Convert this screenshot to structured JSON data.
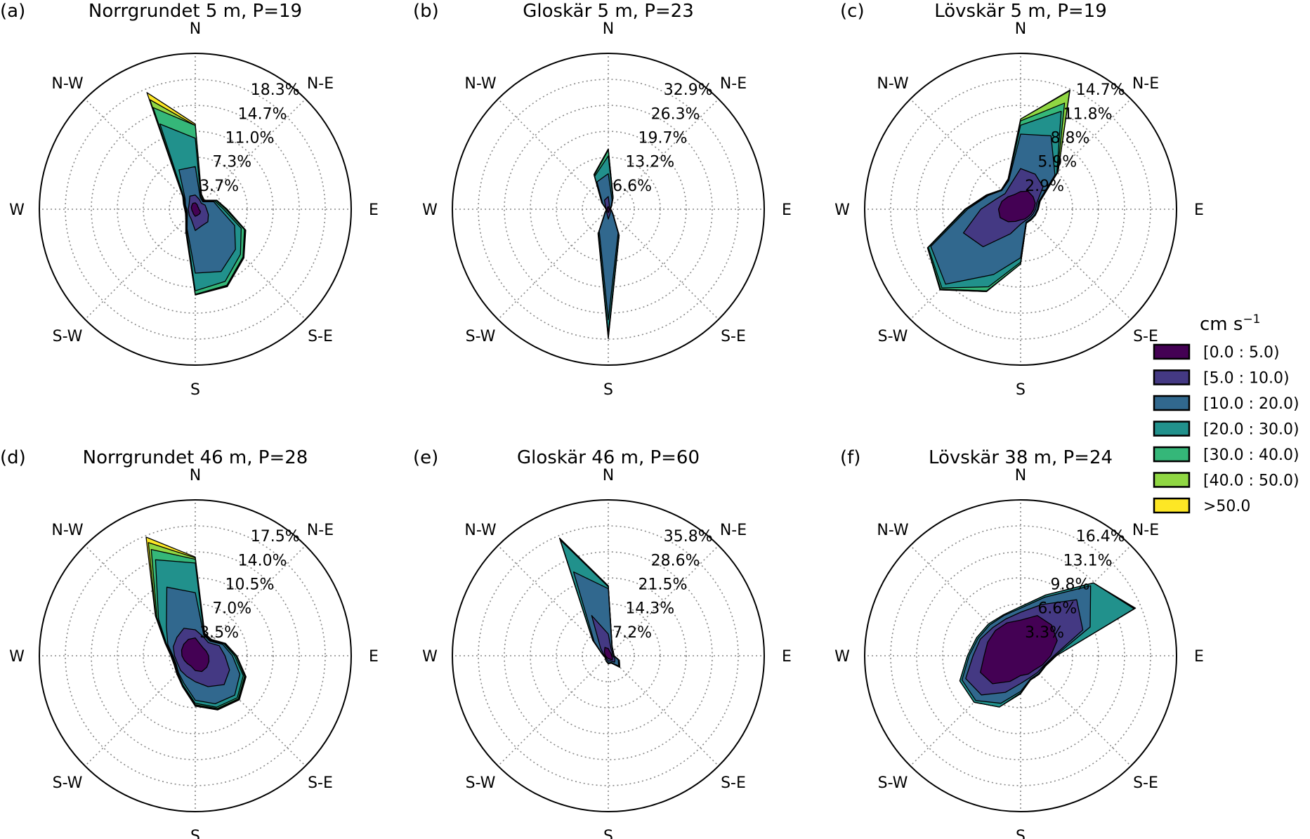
{
  "chart_data": {
    "type": "windrose",
    "direction_labels": [
      "N",
      "N-E",
      "E",
      "S-E",
      "S",
      "S-W",
      "W",
      "N-W"
    ],
    "legend": {
      "title": "cm s",
      "title_superscript": "−1",
      "bins": [
        {
          "label": "[0.0 : 5.0)",
          "color": "#440154"
        },
        {
          "label": "[5.0 : 10.0)",
          "color": "#443983"
        },
        {
          "label": "[10.0 : 20.0)",
          "color": "#31688e"
        },
        {
          "label": "[20.0 : 30.0)",
          "color": "#21918c"
        },
        {
          "label": "[30.0 : 40.0)",
          "color": "#35b779"
        },
        {
          "label": "[40.0 : 50.0)",
          "color": "#90d743"
        },
        {
          "label": ">50.0",
          "color": "#fde725"
        }
      ]
    },
    "directions_deg": [
      0,
      22.5,
      45,
      67.5,
      90,
      112.5,
      135,
      157.5,
      180,
      202.5,
      225,
      247.5,
      270,
      292.5,
      315,
      337.5
    ],
    "panels": [
      {
        "label": "(a)",
        "title": "Norrgrundet 5 m, P=19",
        "radial_ticks": [
          "3.7%",
          "7.3%",
          "11.0%",
          "14.7%",
          "18.3%"
        ],
        "r_max": 18.3,
        "cumulative": [
          [
            0.9,
            0.7,
            0.5,
            0.5,
            0.5,
            0.8,
            0.9,
            0.9,
            1.0,
            0.7,
            0.5,
            0.5,
            0.5,
            0.6,
            0.7,
            0.9
          ],
          [
            2.0,
            1.5,
            1.2,
            1.5,
            1.6,
            2.0,
            2.5,
            2.5,
            3.0,
            1.5,
            1.2,
            1.0,
            1.0,
            1.0,
            1.2,
            2.0
          ],
          [
            6.0,
            1.8,
            1.5,
            2.8,
            3.5,
            6.0,
            8.0,
            9.5,
            9.0,
            3.0,
            1.6,
            1.2,
            1.2,
            1.5,
            2.0,
            6.0
          ],
          [
            10.0,
            2.0,
            1.6,
            3.0,
            4.0,
            7.0,
            9.0,
            11.0,
            11.5,
            3.2,
            1.7,
            1.3,
            1.3,
            1.6,
            2.2,
            13.0
          ],
          [
            11.8,
            2.2,
            1.7,
            3.2,
            4.3,
            7.5,
            9.5,
            11.6,
            12.0,
            3.4,
            1.8,
            1.4,
            1.4,
            1.7,
            2.4,
            15.5
          ],
          [
            11.8,
            2.2,
            1.7,
            3.2,
            4.4,
            7.6,
            9.6,
            11.7,
            12.0,
            3.4,
            1.8,
            1.4,
            1.4,
            1.7,
            2.4,
            16.7
          ],
          [
            12.0,
            2.3,
            1.8,
            3.3,
            4.5,
            7.7,
            9.7,
            11.8,
            12.1,
            3.5,
            1.9,
            1.5,
            1.5,
            1.8,
            2.5,
            17.8
          ]
        ]
      },
      {
        "label": "(b)",
        "title": "Gloskär 5 m, P=23",
        "radial_ticks": [
          "6.6%",
          "13.2%",
          "19.7%",
          "26.3%",
          "32.9%"
        ],
        "r_max": 32.9,
        "cumulative": [
          [
            0.7,
            0.3,
            0.3,
            0.3,
            0.3,
            0.3,
            0.3,
            0.5,
            0.9,
            0.5,
            0.3,
            0.3,
            0.3,
            0.3,
            0.3,
            0.5
          ],
          [
            3.2,
            0.8,
            0.6,
            0.5,
            0.5,
            0.6,
            0.8,
            1.2,
            2.5,
            1.0,
            0.6,
            0.5,
            0.5,
            0.6,
            1.0,
            2.5
          ],
          [
            9.0,
            2.5,
            1.0,
            0.6,
            0.5,
            0.8,
            1.5,
            6.5,
            28.0,
            6.0,
            1.0,
            0.5,
            0.5,
            0.7,
            2.0,
            7.5
          ],
          [
            13.5,
            3.0,
            1.1,
            0.7,
            0.6,
            0.9,
            1.6,
            7.0,
            31.5,
            6.5,
            1.1,
            0.6,
            0.6,
            0.8,
            2.2,
            9.0
          ],
          [
            15.0,
            3.1,
            1.2,
            0.7,
            0.6,
            0.9,
            1.6,
            7.1,
            32.0,
            6.6,
            1.1,
            0.6,
            0.6,
            0.8,
            2.3,
            9.3
          ],
          [
            15.2,
            3.2,
            1.2,
            0.7,
            0.6,
            0.9,
            1.7,
            7.2,
            32.5,
            6.7,
            1.2,
            0.6,
            0.6,
            0.8,
            2.3,
            9.5
          ],
          [
            15.3,
            3.2,
            1.2,
            0.7,
            0.6,
            0.9,
            1.7,
            7.2,
            32.8,
            6.8,
            1.2,
            0.6,
            0.6,
            0.8,
            2.4,
            9.5
          ]
        ]
      },
      {
        "label": "(c)",
        "title": "Lövskär 5 m, P=19",
        "radial_ticks": [
          "2.9%",
          "5.9%",
          "8.8%",
          "11.8%",
          "14.7%"
        ],
        "r_max": 14.7,
        "cumulative": [
          [
            2.0,
            2.2,
            2.0,
            1.8,
            1.5,
            1.3,
            1.2,
            1.2,
            1.2,
            1.5,
            2.0,
            2.5,
            2.5,
            2.3,
            2.0,
            1.8
          ],
          [
            4.6,
            4.3,
            3.6,
            2.0,
            1.7,
            1.5,
            1.4,
            1.4,
            1.7,
            3.0,
            6.0,
            7.0,
            4.5,
            3.0,
            2.5,
            3.0
          ],
          [
            8.5,
            9.0,
            5.5,
            2.2,
            1.9,
            1.7,
            1.6,
            1.6,
            5.5,
            8.0,
            12.0,
            11.0,
            6.0,
            4.0,
            3.0,
            3.5
          ],
          [
            9.5,
            12.0,
            5.8,
            2.3,
            2.0,
            1.8,
            1.7,
            1.7,
            6.0,
            9.5,
            12.6,
            11.3,
            6.2,
            4.1,
            3.1,
            3.6
          ],
          [
            10.0,
            13.0,
            5.9,
            2.4,
            2.0,
            1.8,
            1.7,
            1.7,
            6.2,
            10.0,
            12.8,
            11.4,
            6.3,
            4.2,
            3.1,
            3.7
          ],
          [
            10.2,
            14.5,
            6.0,
            2.4,
            2.0,
            1.8,
            1.7,
            1.7,
            6.2,
            10.1,
            12.9,
            11.4,
            6.3,
            4.2,
            3.1,
            3.7
          ],
          [
            10.2,
            14.6,
            6.0,
            2.4,
            2.0,
            1.8,
            1.7,
            1.7,
            6.2,
            10.1,
            12.9,
            11.4,
            6.3,
            4.2,
            3.1,
            3.7
          ]
        ]
      },
      {
        "label": "(d)",
        "title": "Norrgrundet 46 m, P=28",
        "radial_ticks": [
          "3.5%",
          "7.0%",
          "10.5%",
          "14.0%",
          "17.5%"
        ],
        "r_max": 17.5,
        "cumulative": [
          [
            2.4,
            1.7,
            1.5,
            1.6,
            1.8,
            2.0,
            2.2,
            2.3,
            2.0,
            1.5,
            1.5,
            1.6,
            1.8,
            2.0,
            2.2,
            2.4
          ],
          [
            3.5,
            2.8,
            2.5,
            3.5,
            4.0,
            5.0,
            5.5,
            4.5,
            3.5,
            3.0,
            2.8,
            2.6,
            2.8,
            3.2,
            3.5,
            4.0
          ],
          [
            8.5,
            3.0,
            2.8,
            4.0,
            5.0,
            6.5,
            7.5,
            7.0,
            6.0,
            4.0,
            3.2,
            2.8,
            3.0,
            4.0,
            5.5,
            10.0
          ],
          [
            12.5,
            3.1,
            2.9,
            4.2,
            5.3,
            7.0,
            8.0,
            7.5,
            6.4,
            4.3,
            3.3,
            2.9,
            3.1,
            4.2,
            7.0,
            14.0
          ],
          [
            13.0,
            3.2,
            3.0,
            4.3,
            5.5,
            7.2,
            8.2,
            7.7,
            6.6,
            4.4,
            3.4,
            3.0,
            3.2,
            4.3,
            7.3,
            15.5
          ],
          [
            13.2,
            3.2,
            3.0,
            4.3,
            5.5,
            7.3,
            8.3,
            7.8,
            6.7,
            4.4,
            3.4,
            3.0,
            3.2,
            4.3,
            7.5,
            16.5
          ],
          [
            13.3,
            3.3,
            3.1,
            4.4,
            5.6,
            7.4,
            8.4,
            7.9,
            6.8,
            4.5,
            3.5,
            3.1,
            3.3,
            4.4,
            7.6,
            17.3
          ]
        ]
      },
      {
        "label": "(e)",
        "title": "Gloskär 46 m, P=60",
        "radial_ticks": [
          "7.2%",
          "14.3%",
          "21.5%",
          "28.6%",
          "35.8%"
        ],
        "r_max": 35.8,
        "cumulative": [
          [
            2.0,
            1.2,
            1.0,
            0.9,
            0.9,
            1.2,
            1.6,
            1.0,
            0.8,
            0.6,
            0.6,
            0.6,
            0.8,
            1.0,
            1.5,
            2.5
          ],
          [
            6.0,
            2.0,
            1.5,
            1.2,
            1.2,
            2.0,
            2.5,
            1.5,
            1.5,
            1.0,
            0.8,
            0.8,
            1.0,
            1.5,
            3.0,
            12.0
          ],
          [
            18.5,
            2.6,
            1.8,
            1.5,
            1.5,
            3.0,
            4.0,
            2.0,
            2.0,
            1.5,
            1.0,
            1.0,
            1.2,
            2.0,
            5.5,
            25.0
          ],
          [
            19.0,
            2.7,
            1.9,
            1.6,
            1.6,
            3.2,
            4.4,
            2.1,
            2.1,
            1.6,
            1.1,
            1.0,
            1.3,
            2.1,
            6.0,
            34.5
          ],
          [
            19.2,
            2.8,
            1.9,
            1.6,
            1.6,
            3.2,
            4.5,
            2.1,
            2.1,
            1.6,
            1.1,
            1.0,
            1.3,
            2.1,
            6.0,
            34.8
          ],
          [
            19.3,
            2.8,
            1.9,
            1.6,
            1.6,
            3.3,
            4.5,
            2.2,
            2.2,
            1.6,
            1.1,
            1.0,
            1.3,
            2.1,
            6.1,
            35.0
          ],
          [
            19.3,
            2.8,
            1.9,
            1.6,
            1.6,
            3.3,
            4.5,
            2.2,
            2.2,
            1.6,
            1.1,
            1.0,
            1.3,
            2.1,
            6.1,
            35.1
          ]
        ]
      },
      {
        "label": "(f)",
        "title": "Lövskär 38 m, P=24",
        "radial_ticks": [
          "3.3%",
          "6.6%",
          "9.8%",
          "13.1%",
          "16.4%"
        ],
        "r_max": 16.4,
        "cumulative": [
          [
            4.5,
            5.5,
            5.5,
            5.0,
            3.8,
            3.0,
            2.5,
            2.5,
            2.5,
            3.5,
            5.0,
            5.5,
            4.6,
            4.5,
            4.5,
            4.5
          ],
          [
            5.5,
            7.0,
            10.0,
            8.5,
            4.2,
            3.2,
            3.0,
            3.0,
            3.5,
            5.0,
            7.0,
            7.5,
            6.0,
            5.5,
            5.0,
            5.0
          ],
          [
            6.0,
            8.0,
            12.5,
            9.5,
            4.4,
            3.3,
            3.2,
            3.2,
            4.5,
            6.5,
            8.0,
            8.0,
            6.5,
            5.8,
            5.5,
            5.5
          ],
          [
            6.2,
            8.3,
            13.0,
            15.5,
            4.5,
            3.4,
            3.3,
            3.3,
            4.7,
            7.0,
            8.3,
            8.3,
            6.7,
            6.0,
            5.7,
            5.6
          ],
          [
            6.2,
            8.3,
            13.0,
            15.6,
            4.5,
            3.4,
            3.3,
            3.3,
            4.8,
            7.0,
            8.3,
            8.3,
            6.7,
            6.0,
            5.7,
            5.6
          ],
          [
            6.2,
            8.3,
            13.0,
            15.6,
            4.5,
            3.4,
            3.3,
            3.3,
            4.8,
            7.0,
            8.3,
            8.3,
            6.7,
            6.0,
            5.7,
            5.6
          ],
          [
            6.2,
            8.3,
            13.0,
            15.7,
            4.5,
            3.4,
            3.3,
            3.3,
            4.8,
            7.0,
            8.3,
            8.3,
            6.7,
            6.0,
            5.7,
            5.6
          ]
        ]
      }
    ]
  }
}
